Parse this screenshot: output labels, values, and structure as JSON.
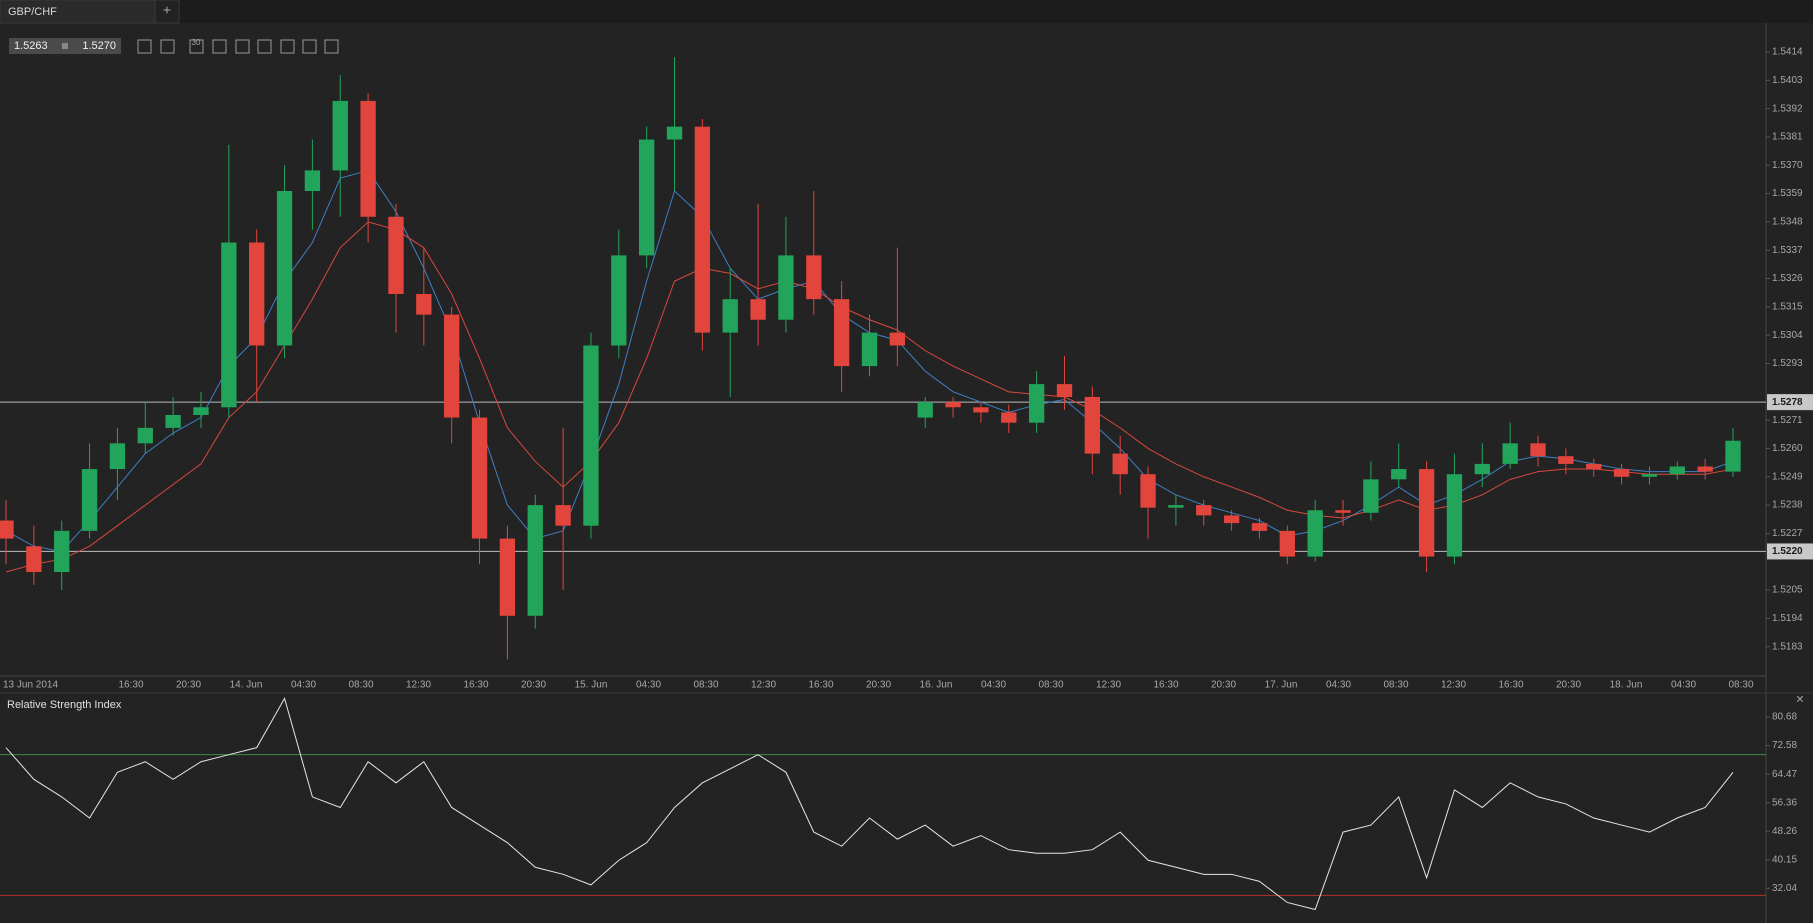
{
  "header": {
    "tab": "GBP/CHF",
    "new_tab": "+",
    "bid": "1.5263",
    "ask": "1.5270",
    "tool_label": "30",
    "close_icon": "×"
  },
  "chart_data": [
    {
      "type": "candlestick",
      "up_color": "#22a45a",
      "down_color": "#e2453c",
      "xlabels": [
        "13 Jun 2014",
        "16:30",
        "20:30",
        "14. Jun",
        "04:30",
        "08:30",
        "12:30",
        "16:30",
        "20:30",
        "15. Jun",
        "04:30",
        "08:30",
        "12:30",
        "16:30",
        "20:30",
        "16. Jun",
        "04:30",
        "08:30",
        "12:30",
        "16:30",
        "20:30",
        "17. Jun",
        "04:30",
        "08:30",
        "12:30",
        "16:30",
        "20:30",
        "18. Jun",
        "04:30",
        "08:30"
      ],
      "open": [
        1.5232,
        1.5222,
        1.5212,
        1.5228,
        1.5252,
        1.5262,
        1.5268,
        1.5273,
        1.5276,
        1.534,
        1.53,
        1.536,
        1.5368,
        1.5395,
        1.535,
        1.532,
        1.5312,
        1.5272,
        1.5225,
        1.5195,
        1.5238,
        1.523,
        1.53,
        1.5335,
        1.538,
        1.5385,
        1.5305,
        1.5318,
        1.531,
        1.5335,
        1.5318,
        1.5292,
        1.5305,
        1.5272,
        1.5278,
        1.5276,
        1.5274,
        1.527,
        1.5285,
        1.528,
        1.5258,
        1.525,
        1.5237,
        1.5238,
        1.5234,
        1.5231,
        1.5228,
        1.5218,
        1.5236,
        1.5235,
        1.5248,
        1.5252,
        1.5218,
        1.525,
        1.5254,
        1.5262,
        1.5257,
        1.5254,
        1.5252,
        1.5249,
        1.525,
        1.5253,
        1.5251
      ],
      "high": [
        1.524,
        1.523,
        1.5232,
        1.5262,
        1.5268,
        1.5278,
        1.528,
        1.5282,
        1.5378,
        1.5345,
        1.537,
        1.538,
        1.5405,
        1.5398,
        1.5355,
        1.5338,
        1.5315,
        1.5275,
        1.523,
        1.5242,
        1.5268,
        1.5305,
        1.5345,
        1.5385,
        1.5412,
        1.5388,
        1.533,
        1.5355,
        1.535,
        1.536,
        1.5325,
        1.5312,
        1.5338,
        1.528,
        1.528,
        1.5278,
        1.5277,
        1.529,
        1.5296,
        1.5284,
        1.5265,
        1.5253,
        1.5242,
        1.524,
        1.5236,
        1.5233,
        1.523,
        1.524,
        1.524,
        1.5255,
        1.5262,
        1.5255,
        1.5258,
        1.5262,
        1.527,
        1.5265,
        1.526,
        1.5256,
        1.5254,
        1.5253,
        1.5255,
        1.5256,
        1.5268
      ],
      "low": [
        1.5215,
        1.5207,
        1.5205,
        1.5225,
        1.524,
        1.5258,
        1.5265,
        1.5268,
        1.5272,
        1.5278,
        1.5295,
        1.5345,
        1.535,
        1.534,
        1.5305,
        1.53,
        1.5262,
        1.5215,
        1.5178,
        1.519,
        1.5205,
        1.5225,
        1.5295,
        1.533,
        1.536,
        1.5298,
        1.528,
        1.53,
        1.5305,
        1.5312,
        1.5282,
        1.5288,
        1.5292,
        1.5268,
        1.5272,
        1.527,
        1.5266,
        1.5266,
        1.5275,
        1.525,
        1.5242,
        1.5225,
        1.523,
        1.523,
        1.5228,
        1.5225,
        1.5215,
        1.5216,
        1.523,
        1.5232,
        1.5245,
        1.5212,
        1.5215,
        1.5245,
        1.5252,
        1.5253,
        1.525,
        1.5249,
        1.5246,
        1.5246,
        1.5248,
        1.5248,
        1.5249
      ],
      "close": [
        1.5225,
        1.5212,
        1.5228,
        1.5252,
        1.5262,
        1.5268,
        1.5273,
        1.5276,
        1.534,
        1.53,
        1.536,
        1.5368,
        1.5395,
        1.535,
        1.532,
        1.5312,
        1.5272,
        1.5225,
        1.5195,
        1.5238,
        1.523,
        1.53,
        1.5335,
        1.538,
        1.5385,
        1.5305,
        1.5318,
        1.531,
        1.5335,
        1.5318,
        1.5292,
        1.5305,
        1.53,
        1.5278,
        1.5276,
        1.5274,
        1.527,
        1.5285,
        1.528,
        1.5258,
        1.525,
        1.5237,
        1.5238,
        1.5234,
        1.5231,
        1.5228,
        1.5218,
        1.5236,
        1.5235,
        1.5248,
        1.5252,
        1.5218,
        1.525,
        1.5254,
        1.5262,
        1.5257,
        1.5254,
        1.5252,
        1.5249,
        1.525,
        1.5253,
        1.5251,
        1.5263
      ],
      "series": [
        {
          "color": "#3f7fc4",
          "values": [
            1.5228,
            1.5222,
            1.522,
            1.5232,
            1.5245,
            1.5258,
            1.5266,
            1.5272,
            1.5292,
            1.5303,
            1.5325,
            1.534,
            1.5365,
            1.5368,
            1.5352,
            1.533,
            1.5305,
            1.527,
            1.5238,
            1.5225,
            1.5228,
            1.5255,
            1.5285,
            1.5325,
            1.536,
            1.535,
            1.533,
            1.5318,
            1.5322,
            1.5325,
            1.5312,
            1.5305,
            1.5302,
            1.529,
            1.5282,
            1.5278,
            1.5274,
            1.5277,
            1.5279,
            1.527,
            1.526,
            1.5248,
            1.5242,
            1.5238,
            1.5235,
            1.5232,
            1.5226,
            1.5228,
            1.5232,
            1.5238,
            1.5245,
            1.5238,
            1.5242,
            1.5248,
            1.5255,
            1.5257,
            1.5256,
            1.5254,
            1.5252,
            1.5251,
            1.5251,
            1.5251,
            1.5255
          ]
        },
        {
          "color": "#d9483e",
          "values": [
            1.5212,
            1.5215,
            1.5217,
            1.5222,
            1.523,
            1.5238,
            1.5246,
            1.5254,
            1.5272,
            1.5282,
            1.53,
            1.5318,
            1.5338,
            1.5348,
            1.5345,
            1.5338,
            1.532,
            1.5295,
            1.5268,
            1.5255,
            1.5245,
            1.5255,
            1.527,
            1.5295,
            1.5325,
            1.533,
            1.5328,
            1.5322,
            1.5325,
            1.5322,
            1.5315,
            1.531,
            1.5306,
            1.5298,
            1.5292,
            1.5287,
            1.5282,
            1.5281,
            1.528,
            1.5275,
            1.5268,
            1.526,
            1.5254,
            1.5249,
            1.5245,
            1.5241,
            1.5236,
            1.5234,
            1.5233,
            1.5236,
            1.524,
            1.5236,
            1.5238,
            1.5242,
            1.5248,
            1.5251,
            1.5252,
            1.5252,
            1.5251,
            1.525,
            1.525,
            1.525,
            1.5252
          ]
        }
      ],
      "hlines": [
        1.5278,
        {
          "value": 1.522,
          "label": "1.5220"
        }
      ],
      "ylim": [
        1.5172,
        1.5425
      ],
      "yticks": [
        1.5183,
        1.5194,
        1.5205,
        1.5227,
        1.5238,
        1.5249,
        {
          "value": 1.526,
          "label": "1.5260"
        },
        1.5271,
        1.5293,
        1.5304,
        1.5315,
        1.5326,
        1.5337,
        1.5348,
        1.5359,
        {
          "value": 1.537,
          "label": "1.5370"
        },
        1.5381,
        1.5392,
        1.5403,
        1.5414
      ]
    },
    {
      "type": "line",
      "title": "Relative Strength Index",
      "color": "#e6e6e6",
      "values": [
        72,
        63,
        58,
        52,
        65,
        68,
        63,
        68,
        70,
        72,
        86,
        58,
        55,
        68,
        62,
        68,
        55,
        50,
        45,
        38,
        36,
        33,
        40,
        45,
        55,
        62,
        66,
        70,
        65,
        48,
        44,
        52,
        46,
        50,
        44,
        47,
        43,
        42,
        42,
        43,
        48,
        40,
        38,
        36,
        36,
        34,
        28,
        26,
        48,
        50,
        58,
        35,
        60,
        55,
        62,
        58,
        56,
        52,
        50,
        48,
        52,
        55,
        65
      ],
      "levels": [
        {
          "value": 70,
          "color": "#3b8a45"
        },
        {
          "value": 30,
          "color": "#b3322c"
        }
      ],
      "ylim": [
        23.3,
        88.1
      ],
      "yticks": [
        32.04,
        40.15,
        48.26,
        56.36,
        64.47,
        72.58,
        80.68
      ]
    }
  ]
}
